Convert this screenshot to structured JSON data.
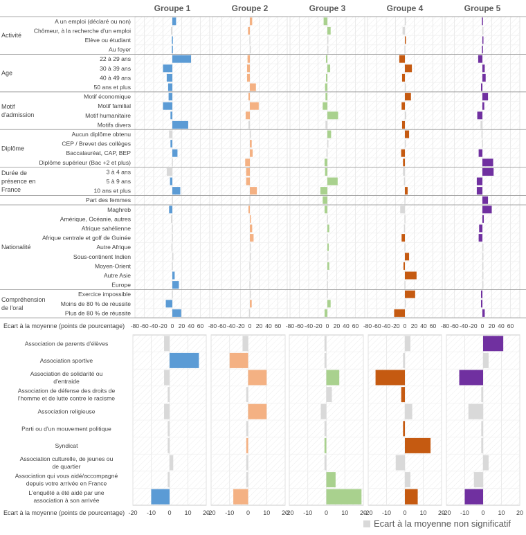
{
  "colors": {
    "groupe1": "#5b9bd5",
    "groupe2": "#f4b183",
    "groupe3": "#a9d18e",
    "groupe4": "#c55a11",
    "groupe5": "#7030a0",
    "non_significatif": "#d9d9d9"
  },
  "legend": {
    "non_significatif_label": "Ecart à la moyenne non significatif"
  },
  "chart_data": [
    {
      "type": "bar",
      "orientation": "horizontal",
      "title": "",
      "xlabel": "Ecart à la moyenne (points de pourcentage)",
      "xlim": [
        -80,
        80
      ],
      "xticks": [
        -80,
        -60,
        -40,
        -20,
        0,
        20,
        40,
        60
      ],
      "panel_titles": [
        "Groupe 1",
        "Groupe 2",
        "Groupe 3",
        "Groupe 4",
        "Groupe 5"
      ],
      "sections": [
        {
          "label": "Activité",
          "rows": [
            {
              "label": "A un emploi (déclaré ou non)",
              "values": [
                8,
                5,
                -8,
                2,
                -1
              ],
              "significant": [
                true,
                true,
                true,
                false,
                true
              ]
            },
            {
              "label": "Chômeur, à la recherche d'un emploi",
              "values": [
                -3,
                -4,
                7,
                -5,
                1
              ],
              "significant": [
                false,
                true,
                true,
                false,
                false
              ]
            },
            {
              "label": "Elève ou étudiant",
              "values": [
                -1,
                -1,
                1,
                2,
                2
              ],
              "significant": [
                true,
                false,
                false,
                true,
                true
              ]
            },
            {
              "label": "Au foyer",
              "values": [
                -1,
                1,
                1,
                -1,
                -1
              ],
              "significant": [
                true,
                false,
                false,
                false,
                true
              ]
            }
          ]
        },
        {
          "label": "Age",
          "rows": [
            {
              "label": "22 à 29 ans",
              "values": [
                40,
                -5,
                -3,
                -12,
                -9
              ],
              "significant": [
                true,
                true,
                true,
                true,
                true
              ]
            },
            {
              "label": "30 à 39 ans",
              "values": [
                -20,
                -6,
                6,
                15,
                5
              ],
              "significant": [
                true,
                true,
                true,
                true,
                true
              ]
            },
            {
              "label": "40 à 49 ans",
              "values": [
                -12,
                -6,
                -3,
                -6,
                7
              ],
              "significant": [
                true,
                true,
                true,
                true,
                true
              ]
            },
            {
              "label": "50 ans et plus",
              "values": [
                -9,
                13,
                -5,
                1,
                -3
              ],
              "significant": [
                true,
                true,
                true,
                false,
                true
              ]
            }
          ]
        },
        {
          "label": "Motif d'admission",
          "rows": [
            {
              "label": "Motif économique",
              "values": [
                -8,
                -3,
                -4,
                13,
                12
              ],
              "significant": [
                true,
                true,
                true,
                true,
                true
              ]
            },
            {
              "label": "Motif familial",
              "values": [
                -20,
                19,
                -10,
                -7,
                4
              ],
              "significant": [
                true,
                true,
                true,
                true,
                true
              ]
            },
            {
              "label": "Motif humanitaire",
              "values": [
                -4,
                -9,
                23,
                3,
                -11
              ],
              "significant": [
                true,
                true,
                true,
                false,
                true
              ]
            },
            {
              "label": "Motifs divers",
              "values": [
                34,
                -3,
                -4,
                -6,
                -4
              ],
              "significant": [
                true,
                false,
                false,
                true,
                false
              ]
            }
          ]
        },
        {
          "label": "Diplôme",
          "rows": [
            {
              "label": "Aucun diplôme obtenu",
              "values": [
                -7,
                1,
                8,
                9,
                -2
              ],
              "significant": [
                false,
                false,
                true,
                true,
                false
              ]
            },
            {
              "label": "CEP / Brevet des collèges",
              "values": [
                -4,
                4,
                1,
                1,
                -1
              ],
              "significant": [
                true,
                true,
                false,
                false,
                false
              ]
            },
            {
              "label": "Baccalauréat,  CAP, BEP",
              "values": [
                11,
                6,
                -2,
                -8,
                -8
              ],
              "significant": [
                true,
                true,
                false,
                true,
                true
              ]
            },
            {
              "label": "Diplôme supérieur (Bac +2 et plus)",
              "values": [
                -1,
                -10,
                -6,
                -4,
                23
              ],
              "significant": [
                false,
                true,
                true,
                true,
                true
              ]
            }
          ]
        },
        {
          "label": "Durée de présence en France",
          "rows": [
            {
              "label": "3 à 4 ans",
              "values": [
                -12,
                -8,
                -5,
                -4,
                24
              ],
              "significant": [
                false,
                true,
                true,
                false,
                true
              ]
            },
            {
              "label": "5 à 9 ans",
              "values": [
                -5,
                -8,
                22,
                -2,
                -12
              ],
              "significant": [
                true,
                true,
                true,
                false,
                true
              ]
            },
            {
              "label": "10 ans et plus",
              "values": [
                17,
                15,
                -15,
                6,
                -12
              ],
              "significant": [
                true,
                true,
                true,
                true,
                true
              ]
            }
          ]
        },
        {
          "label": "",
          "rows": [
            {
              "label": "Part des femmes",
              "values": [
                -1,
                -1,
                -10,
                -1,
                12
              ],
              "significant": [
                false,
                false,
                true,
                false,
                true
              ]
            }
          ]
        },
        {
          "label": "Nationalité",
          "rows": [
            {
              "label": "Maghreb",
              "values": [
                -7,
                -3,
                -6,
                -10,
                20
              ],
              "significant": [
                true,
                true,
                true,
                false,
                true
              ]
            },
            {
              "label": "Amérique, Océanie, autres",
              "values": [
                -3,
                1,
                -1,
                -1,
                3
              ],
              "significant": [
                false,
                true,
                false,
                false,
                true
              ]
            },
            {
              "label": "Afrique sahélienne",
              "values": [
                -1,
                5,
                4,
                -2,
                -7
              ],
              "significant": [
                false,
                true,
                true,
                false,
                true
              ]
            },
            {
              "label": "Afrique centrale et golf de Guinée",
              "values": [
                -1,
                8,
                -1,
                -7,
                -8
              ],
              "significant": [
                false,
                true,
                false,
                true,
                true
              ]
            },
            {
              "label": "Autre Afrique",
              "values": [
                -2,
                1,
                3,
                -1,
                1
              ],
              "significant": [
                false,
                false,
                true,
                false,
                false
              ]
            },
            {
              "label": "Sous-continent Indien",
              "values": [
                1,
                1,
                1,
                9,
                1
              ],
              "significant": [
                false,
                false,
                false,
                true,
                false
              ]
            },
            {
              "label": "Moyen-Orient",
              "values": [
                -1,
                -1,
                4,
                -3,
                1
              ],
              "significant": [
                false,
                false,
                true,
                true,
                false
              ]
            },
            {
              "label": "Autre Asie",
              "values": [
                5,
                1,
                -1,
                25,
                1
              ],
              "significant": [
                true,
                false,
                false,
                true,
                false
              ]
            },
            {
              "label": "Europe",
              "values": [
                14,
                -1,
                -1,
                -1,
                1
              ],
              "significant": [
                true,
                false,
                false,
                false,
                false
              ]
            }
          ]
        },
        {
          "label": "Compréhension de l'oral",
          "rows": [
            {
              "label": "Exercice impossible",
              "values": [
                -1,
                1,
                -1,
                22,
                -3
              ],
              "significant": [
                false,
                false,
                false,
                true,
                true
              ]
            },
            {
              "label": "Moins de 80 % de réussite",
              "values": [
                -14,
                4,
                7,
                1,
                -3
              ],
              "significant": [
                true,
                true,
                true,
                false,
                true
              ]
            },
            {
              "label": "Plus de 80 % de réussite",
              "values": [
                19,
                -2,
                -6,
                -23,
                5
              ],
              "significant": [
                true,
                false,
                true,
                true,
                true
              ]
            }
          ]
        }
      ]
    },
    {
      "type": "bar",
      "orientation": "horizontal",
      "title": "",
      "xlabel": "Ecart à la moyenne (points de pourcentage)",
      "xlim": [
        -20,
        20
      ],
      "xticks": [
        -20,
        -10,
        0,
        10,
        20
      ],
      "panel_titles": [
        "Groupe 1",
        "Groupe 2",
        "Groupe 3",
        "Groupe 4",
        "Groupe 5"
      ],
      "rows": [
        {
          "label": "Association de parents d'élèves",
          "values": [
            -3,
            -3,
            -1,
            3,
            11
          ],
          "significant": [
            false,
            false,
            false,
            false,
            true
          ]
        },
        {
          "label": "Association sportive",
          "values": [
            16,
            -10,
            -1,
            -1,
            3
          ],
          "significant": [
            true,
            true,
            false,
            false,
            false
          ]
        },
        {
          "label": "Association de solidarité ou d'entraide",
          "values": [
            -3,
            10,
            7,
            -16,
            -13
          ],
          "significant": [
            false,
            true,
            true,
            true,
            true
          ]
        },
        {
          "label": "Association de défense des droits de l'homme et de lutte contre le racisme",
          "values": [
            -1,
            -1,
            3,
            -2,
            -1
          ],
          "significant": [
            false,
            false,
            false,
            true,
            false
          ]
        },
        {
          "label": "Association religieuse",
          "values": [
            -3,
            10,
            -3,
            4,
            -8
          ],
          "significant": [
            false,
            true,
            false,
            false,
            false
          ]
        },
        {
          "label": "Parti ou d'un mouvement politique",
          "values": [
            -1,
            -1,
            -1,
            -1,
            -1
          ],
          "significant": [
            false,
            false,
            false,
            true,
            false
          ]
        },
        {
          "label": "Syndicat",
          "values": [
            -1,
            -1,
            -1,
            14,
            -1
          ],
          "significant": [
            false,
            true,
            true,
            true,
            false
          ]
        },
        {
          "label": "Association culturelle, de jeunes ou de quartier",
          "values": [
            2,
            -1,
            -1,
            -5,
            3
          ],
          "significant": [
            false,
            false,
            false,
            false,
            false
          ]
        },
        {
          "label": "Association qui vous aidé/accompagné depuis votre arrivée en France",
          "values": [
            -1,
            -1,
            5,
            3,
            -5
          ],
          "significant": [
            false,
            false,
            true,
            false,
            false
          ]
        },
        {
          "label": "L'enquêté a été aidé par une association à son arrivée",
          "values": [
            -10,
            -8,
            19,
            7,
            -10
          ],
          "significant": [
            true,
            true,
            true,
            true,
            true
          ]
        }
      ]
    }
  ]
}
